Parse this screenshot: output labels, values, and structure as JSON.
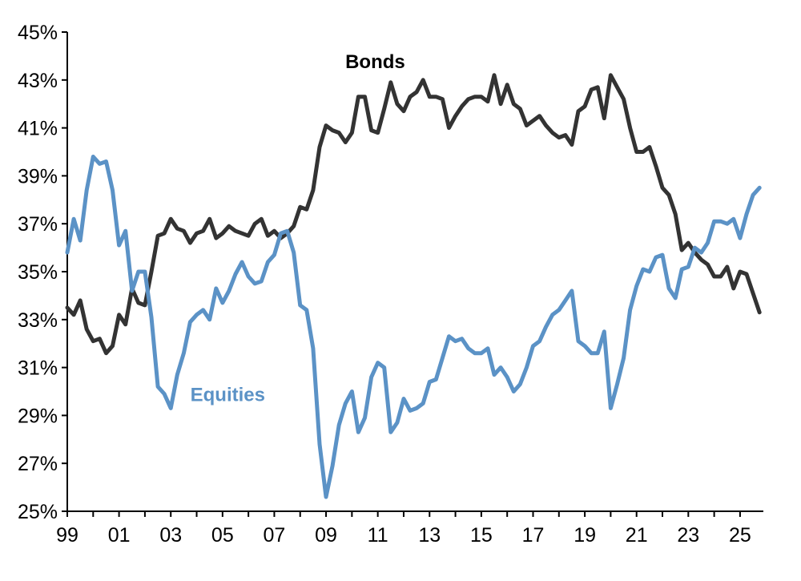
{
  "chart_data": {
    "type": "line",
    "title": "",
    "xlabel": "",
    "ylabel": "",
    "x_start": 1999.0,
    "x_step": 0.25,
    "xlim": [
      1999.0,
      2025.9
    ],
    "ylim": [
      25,
      45
    ],
    "y_ticks": [
      25,
      27,
      29,
      31,
      33,
      35,
      37,
      39,
      41,
      43,
      45
    ],
    "y_tick_labels": [
      "25%",
      "27%",
      "29%",
      "31%",
      "33%",
      "35%",
      "37%",
      "39%",
      "41%",
      "43%",
      "45%"
    ],
    "x_ticks": [
      1999,
      2001,
      2003,
      2005,
      2007,
      2009,
      2011,
      2013,
      2015,
      2017,
      2019,
      2021,
      2023,
      2025
    ],
    "x_tick_labels": [
      "99",
      "01",
      "03",
      "05",
      "07",
      "09",
      "11",
      "13",
      "15",
      "17",
      "19",
      "21",
      "23",
      "25"
    ],
    "grid": false,
    "legend": "none",
    "series": [
      {
        "name": "Bonds",
        "color": "#333333",
        "values": [
          33.5,
          33.2,
          33.8,
          32.6,
          32.1,
          32.2,
          31.6,
          31.9,
          33.2,
          32.8,
          34.3,
          33.7,
          33.6,
          35.0,
          36.5,
          36.6,
          37.2,
          36.8,
          36.7,
          36.2,
          36.6,
          36.7,
          37.2,
          36.4,
          36.6,
          36.9,
          36.7,
          36.6,
          36.5,
          37.0,
          37.2,
          36.5,
          36.7,
          36.4,
          36.6,
          36.9,
          37.7,
          37.6,
          38.4,
          40.2,
          41.1,
          40.9,
          40.8,
          40.4,
          40.8,
          42.3,
          42.3,
          40.9,
          40.8,
          41.8,
          42.9,
          42.0,
          41.7,
          42.3,
          42.5,
          43.0,
          42.3,
          42.3,
          42.2,
          41.0,
          41.5,
          41.9,
          42.2,
          42.3,
          42.3,
          42.1,
          43.2,
          42.0,
          42.8,
          42.0,
          41.8,
          41.1,
          41.3,
          41.5,
          41.1,
          40.8,
          40.6,
          40.7,
          40.3,
          41.7,
          41.9,
          42.6,
          42.7,
          41.4,
          43.2,
          42.7,
          42.2,
          41.0,
          40.0,
          40.0,
          40.2,
          39.4,
          38.5,
          38.2,
          37.4,
          35.9,
          36.2,
          35.8,
          35.5,
          35.3,
          34.8,
          34.8,
          35.2,
          34.3,
          35.0,
          34.9,
          34.1,
          33.3
        ]
      },
      {
        "name": "Equities",
        "color": "#5b92c6",
        "values": [
          35.8,
          37.2,
          36.3,
          38.4,
          39.8,
          39.5,
          39.6,
          38.4,
          36.1,
          36.7,
          34.2,
          35.0,
          35.0,
          33.1,
          30.2,
          29.9,
          29.3,
          30.7,
          31.6,
          32.9,
          33.2,
          33.4,
          33.0,
          34.3,
          33.7,
          34.2,
          34.9,
          35.4,
          34.8,
          34.5,
          34.6,
          35.4,
          35.7,
          36.6,
          36.7,
          35.8,
          33.6,
          33.4,
          31.8,
          27.8,
          25.6,
          26.9,
          28.6,
          29.5,
          30.0,
          28.3,
          28.9,
          30.6,
          31.2,
          31.0,
          28.3,
          28.7,
          29.7,
          29.2,
          29.3,
          29.5,
          30.4,
          30.5,
          31.4,
          32.3,
          32.1,
          32.2,
          31.8,
          31.6,
          31.6,
          31.8,
          30.7,
          31.0,
          30.6,
          30.0,
          30.3,
          31.0,
          31.9,
          32.1,
          32.7,
          33.2,
          33.4,
          33.8,
          34.2,
          32.1,
          31.9,
          31.6,
          31.6,
          32.5,
          29.3,
          30.3,
          31.4,
          33.4,
          34.4,
          35.1,
          35.0,
          35.6,
          35.7,
          34.3,
          33.9,
          35.1,
          35.2,
          36.0,
          35.8,
          36.2,
          37.1,
          37.1,
          37.0,
          37.2,
          36.4,
          37.4,
          38.2,
          38.5
        ]
      }
    ],
    "annotations": [
      {
        "series": "Bonds",
        "text": "Bonds",
        "x": 2010.9,
        "y": 43.5,
        "color": "#000000"
      },
      {
        "series": "Equities",
        "text": "Equities",
        "x": 2005.2,
        "y": 29.6,
        "color": "#5b92c6"
      }
    ]
  }
}
